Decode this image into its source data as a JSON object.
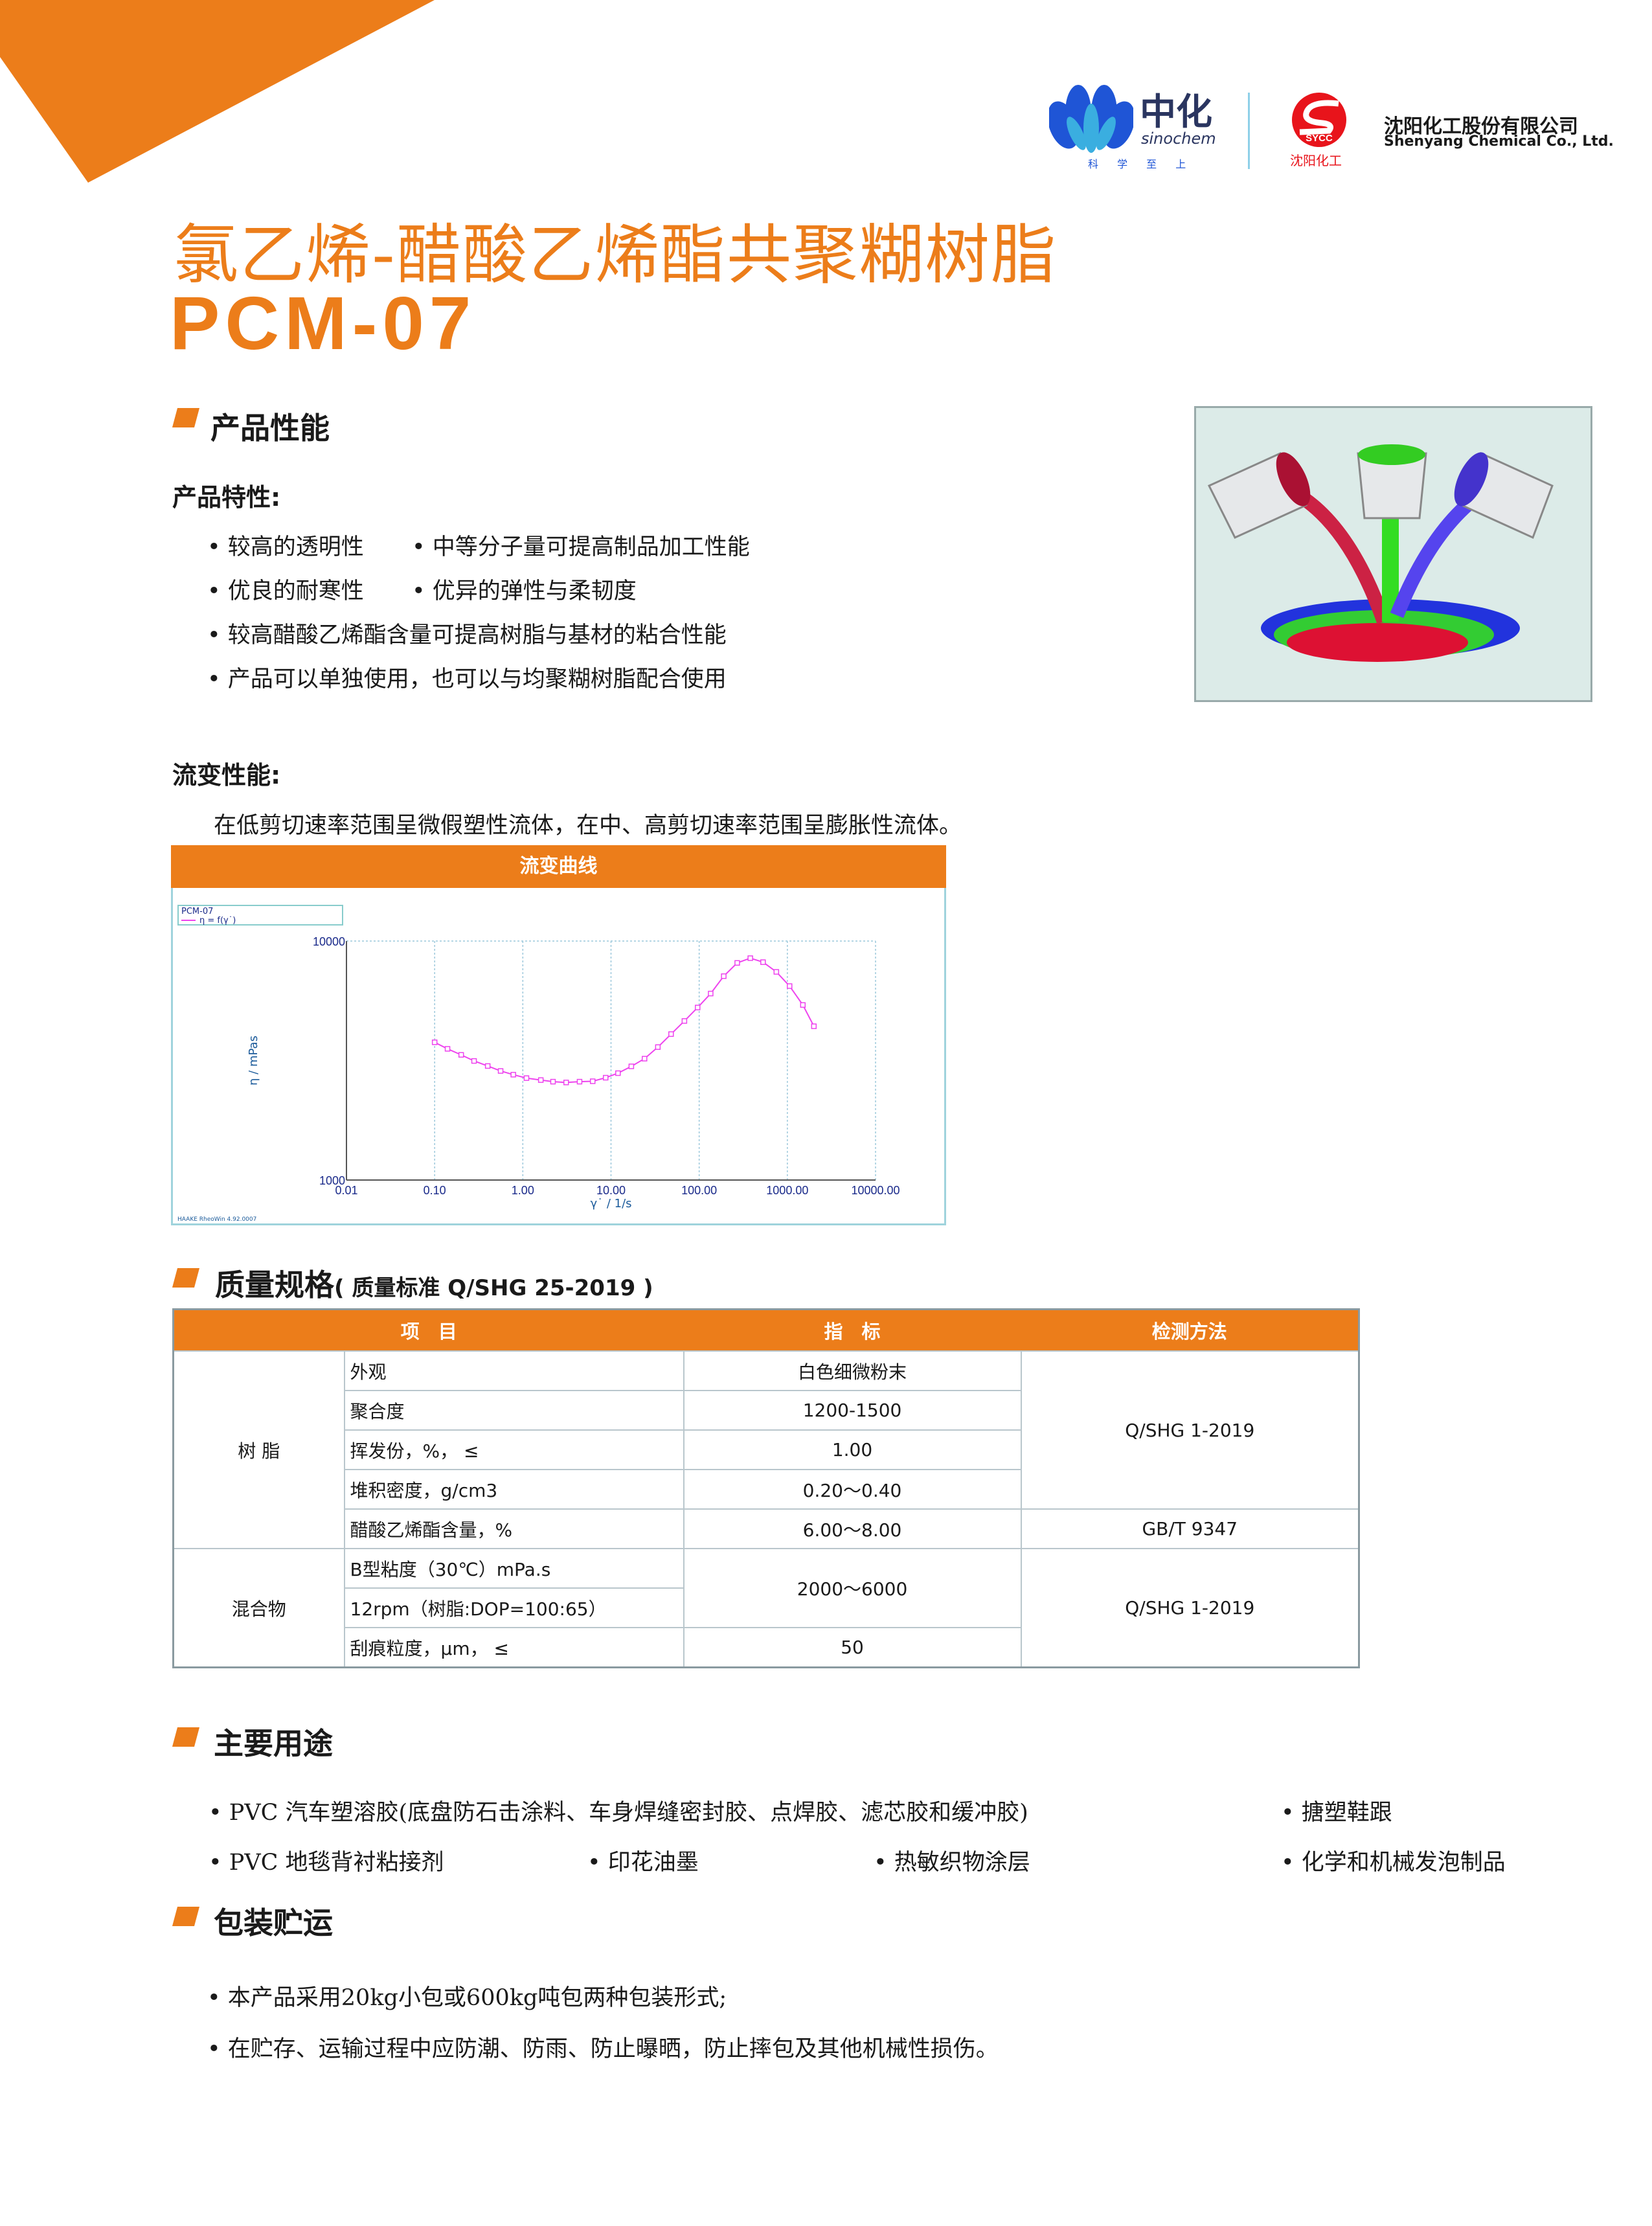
{
  "header": {
    "logo_sinochem": {
      "cn": "中化",
      "en": "sinochem",
      "slogan": "科 学 至 上"
    },
    "logo_sycc": {
      "badge": "SYCC",
      "cn_short": "沈阳化工",
      "company_cn": "沈阳化工股份有限公司",
      "company_en": "Shenyang Chemical Co., Ltd."
    }
  },
  "title": {
    "line1": "氯乙烯-醋酸乙烯酯共聚糊树脂",
    "line2": "PCM-07"
  },
  "performance": {
    "heading": "产品性能",
    "features_title": "产品特性:",
    "features": [
      "较高的透明性",
      "中等分子量可提高制品加工性能",
      "优良的耐寒性",
      "优异的弹性与柔韧度",
      "较高醋酸乙烯酯含量可提高树脂与基材的粘合性能",
      "产品可以单独使用，也可以与均聚糊树脂配合使用"
    ],
    "rheology_title": "流变性能:",
    "rheology_text": "在低剪切速率范围呈微假塑性流体，在中、高剪切速率范围呈膨胀性流体。"
  },
  "chart_data": {
    "type": "line",
    "title": "流变曲线",
    "legend_title": "PCM-07",
    "series": [
      {
        "name": "η = f(γ˙)",
        "color": "#ee44ee",
        "x": [
          0.1,
          0.14,
          0.2,
          0.28,
          0.4,
          0.56,
          0.78,
          1.1,
          1.6,
          2.2,
          3.1,
          4.4,
          6.2,
          8.7,
          12,
          17,
          24,
          34,
          48,
          68,
          96,
          135,
          190,
          270,
          380,
          530,
          750,
          1060,
          1500,
          2000
        ],
        "y": [
          3770,
          3540,
          3340,
          3150,
          3000,
          2860,
          2760,
          2670,
          2620,
          2580,
          2560,
          2580,
          2590,
          2680,
          2800,
          2990,
          3220,
          3600,
          4080,
          4630,
          5270,
          6030,
          7130,
          8100,
          8480,
          8160,
          7430,
          6480,
          5400,
          4400
        ]
      }
    ],
    "xlabel": "γ˙ / 1/s",
    "ylabel": "η / mPas",
    "xscale": "log",
    "yscale": "log",
    "xlim": [
      0.01,
      10000
    ],
    "ylim": [
      1000,
      10000
    ],
    "xticks": [
      "0.01",
      "0.10",
      "1.00",
      "10.00",
      "100.00",
      "1000.00",
      "10000.00"
    ],
    "yticks": [
      "1000",
      "10000"
    ],
    "grid": true,
    "legend_placement": "top-left",
    "footer": "HAAKE RheoWin 4.92.0007"
  },
  "quality": {
    "heading": "质量规格",
    "standard": "( 质量标准 Q/SHG 25-2019 )",
    "columns": [
      "项　目",
      "指　标",
      "检测方法"
    ],
    "groups": [
      {
        "name": "树 脂",
        "rows": [
          {
            "item": "外观",
            "value": "白色细微粉末"
          },
          {
            "item": "聚合度",
            "value": "1200-1500"
          },
          {
            "item": "挥发份，%，  ≤",
            "value": "1.00"
          },
          {
            "item": "堆积密度，g/cm3",
            "value": "0.20～0.40"
          },
          {
            "item": "醋酸乙烯酯含量，%",
            "value": "6.00～8.00"
          }
        ],
        "methods": [
          "Q/SHG 1-2019",
          "GB/T 9347"
        ]
      },
      {
        "name": "混合物",
        "rows": [
          {
            "item": "B型粘度（30℃）mPa.s",
            "value": "2000～6000"
          },
          {
            "item": "12rpm（树脂:DOP=100:65）"
          },
          {
            "item": "刮痕粒度，μm，  ≤",
            "value": "50"
          }
        ],
        "methods": [
          "Q/SHG 1-2019"
        ]
      }
    ]
  },
  "uses": {
    "heading": "主要用途",
    "items": [
      "PVC 汽车塑溶胶(底盘防石击涂料、车身焊缝密封胶、点焊胶、滤芯胶和缓冲胶)",
      "搪塑鞋跟",
      "PVC 地毯背衬粘接剂",
      "印花油墨",
      "热敏织物涂层",
      "化学和机械发泡制品"
    ]
  },
  "packaging": {
    "heading": "包装贮运",
    "items": [
      "本产品采用20kg小包或600kg吨包两种包装形式;",
      "在贮存、运输过程中应防潮、防雨、防止曝晒，防止摔包及其他机械性损伤。"
    ]
  },
  "colors": {
    "accent": "#ec7d1a",
    "sinochem_blue": "#1f55d6",
    "sycc_red": "#e8141b"
  }
}
